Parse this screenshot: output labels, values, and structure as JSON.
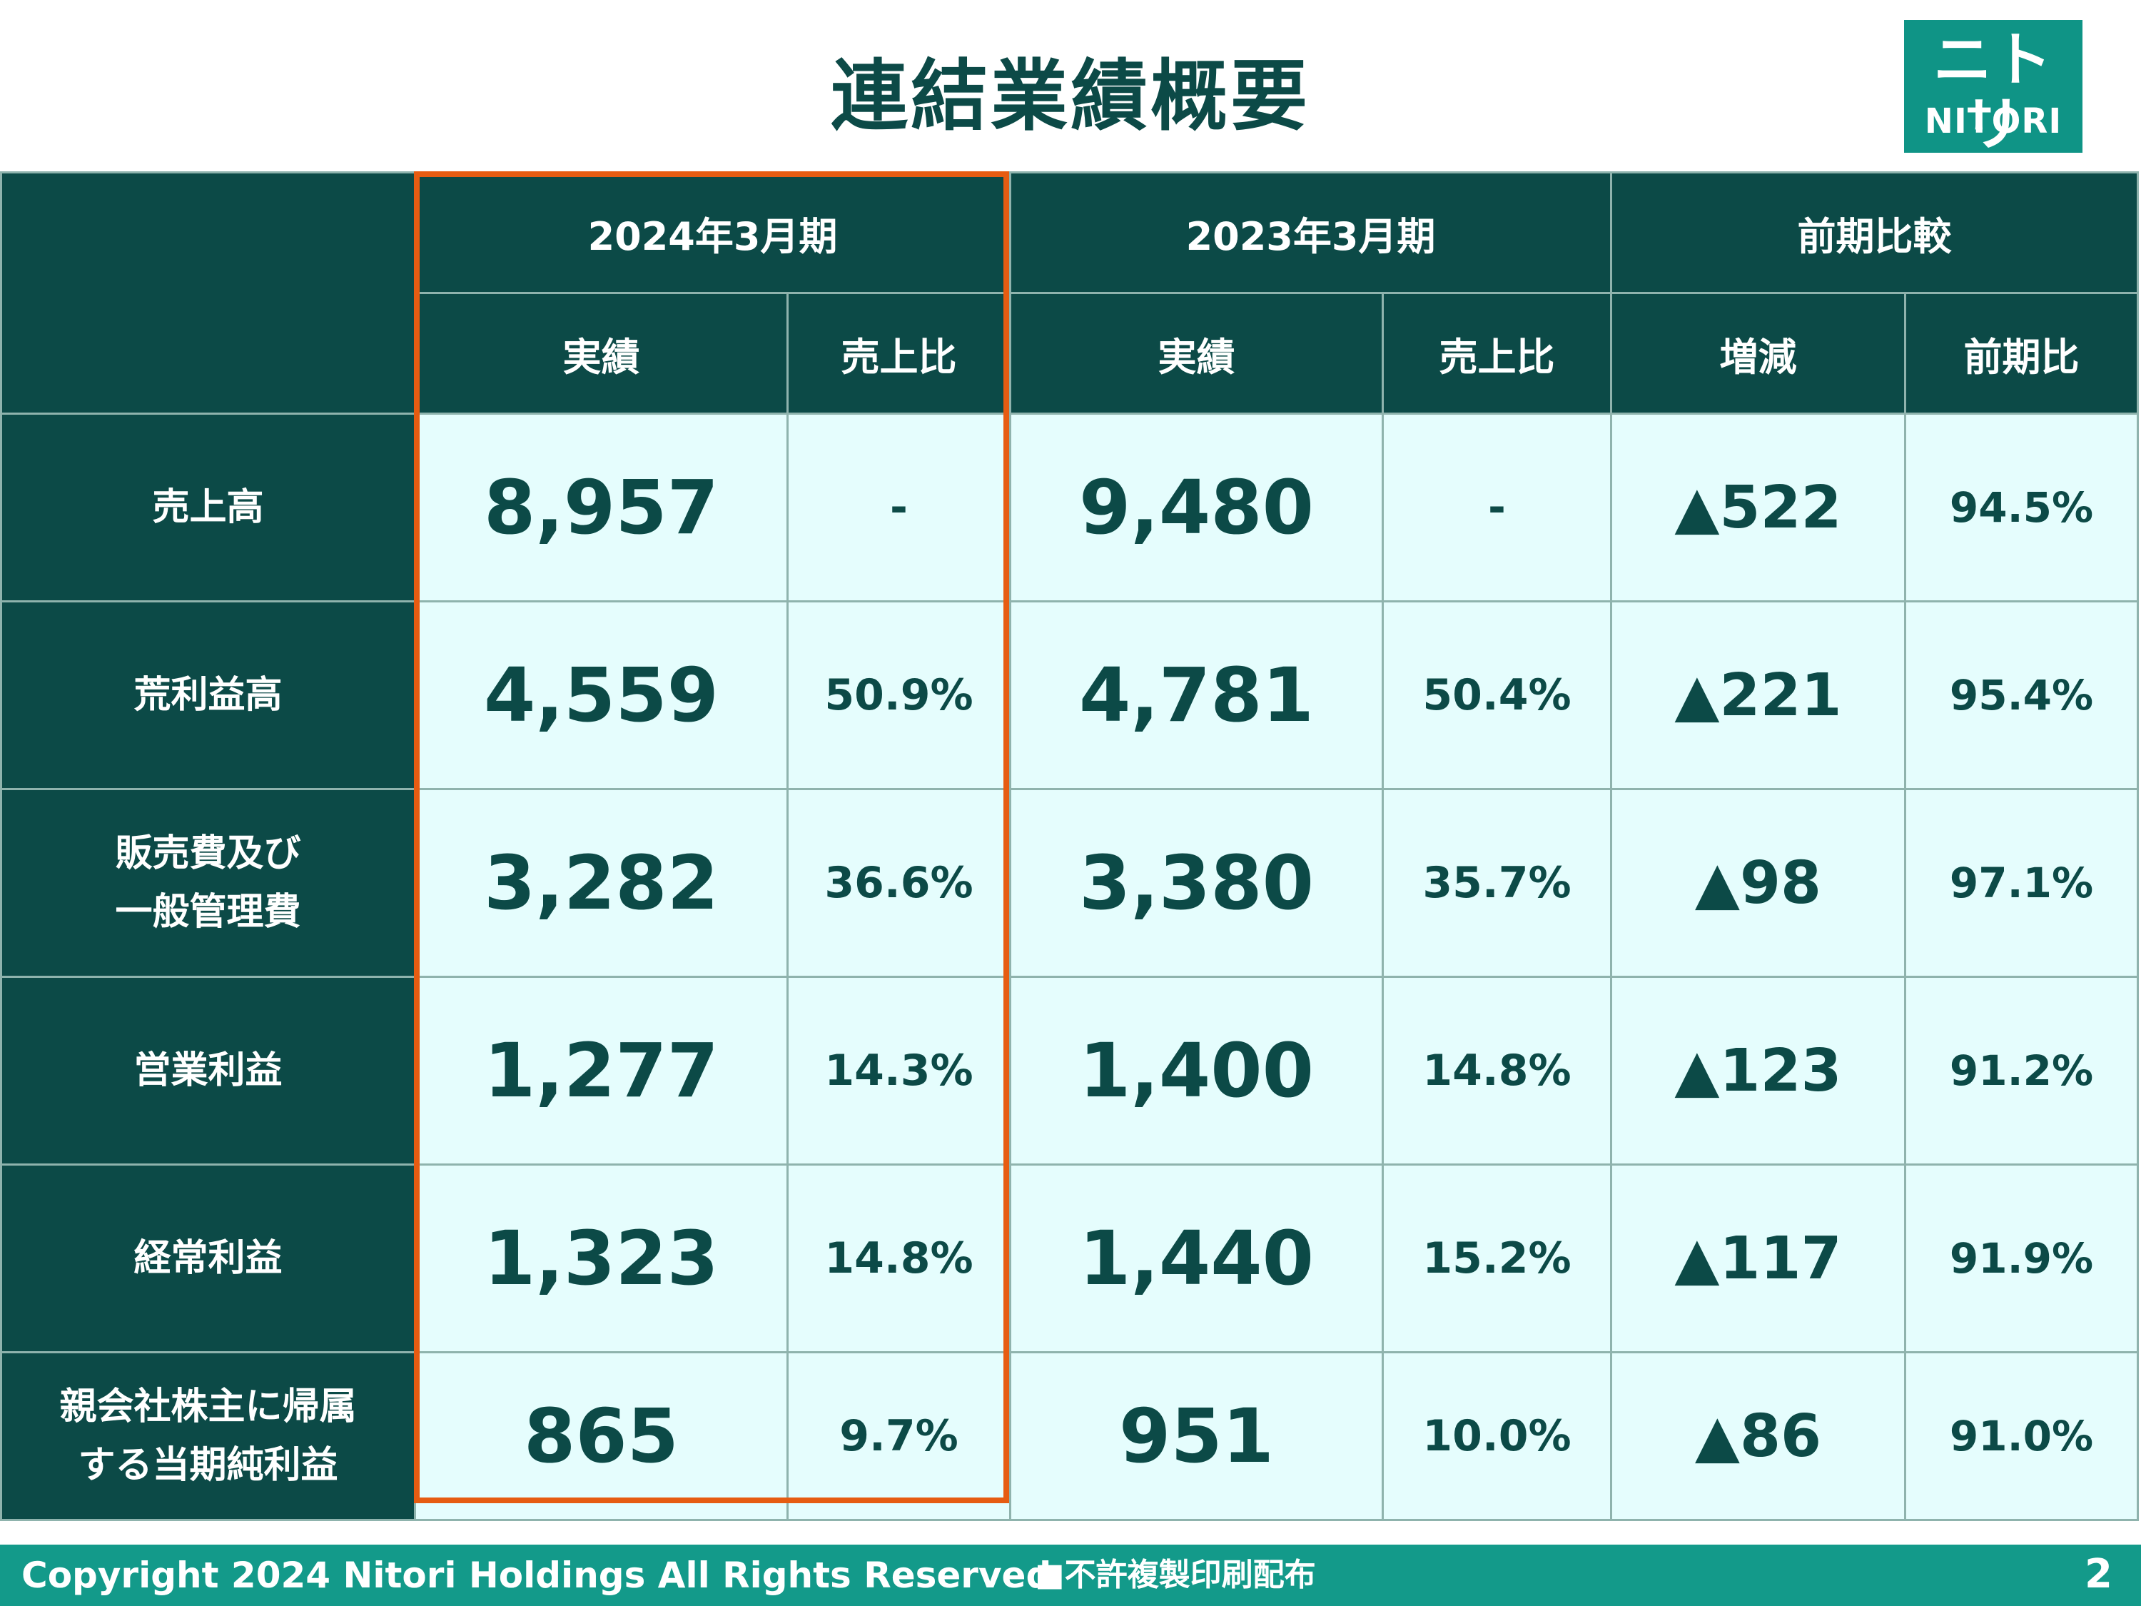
{
  "header": {
    "title": "連結業績概要"
  },
  "logo": {
    "kana": "ニトリ",
    "latin": "NITORI"
  },
  "table": {
    "periods": [
      "2024年3月期",
      "2023年3月期",
      "前期比較"
    ],
    "subheaders": [
      "実績",
      "売上比",
      "実績",
      "売上比",
      "増減",
      "前期比"
    ],
    "rows": [
      {
        "label1": "売上高",
        "label2": "",
        "v2024": "8,957",
        "r2024": "-",
        "v2023": "9,480",
        "r2023": "-",
        "diff": "▲522",
        "pct": "94.5%"
      },
      {
        "label1": "荒利益高",
        "label2": "",
        "v2024": "4,559",
        "r2024": "50.9%",
        "v2023": "4,781",
        "r2023": "50.4%",
        "diff": "▲221",
        "pct": "95.4%"
      },
      {
        "label1": "販売費及び",
        "label2": "一般管理費",
        "v2024": "3,282",
        "r2024": "36.6%",
        "v2023": "3,380",
        "r2023": "35.7%",
        "diff": "▲98",
        "pct": "97.1%"
      },
      {
        "label1": "営業利益",
        "label2": "",
        "v2024": "1,277",
        "r2024": "14.3%",
        "v2023": "1,400",
        "r2023": "14.8%",
        "diff": "▲123",
        "pct": "91.2%"
      },
      {
        "label1": "経常利益",
        "label2": "",
        "v2024": "1,323",
        "r2024": "14.8%",
        "v2023": "1,440",
        "r2023": "15.2%",
        "diff": "▲117",
        "pct": "91.9%"
      },
      {
        "label1": "親会社株主に帰属",
        "label2": "する当期純利益",
        "v2024": "865",
        "r2024": "9.7%",
        "v2023": "951",
        "r2023": "10.0%",
        "diff": "▲86",
        "pct": "91.0%"
      }
    ]
  },
  "footer": {
    "copyright": "Copyright 2024 Nitori Holdings All Rights Reserved",
    "notice": "■不許複製印刷配布",
    "page": "2"
  },
  "colors": {
    "dark_teal": "#0c4a47",
    "footer_teal": "#139a8a",
    "cell_bg": "#e5fdfd",
    "highlight": "#e65c12"
  }
}
